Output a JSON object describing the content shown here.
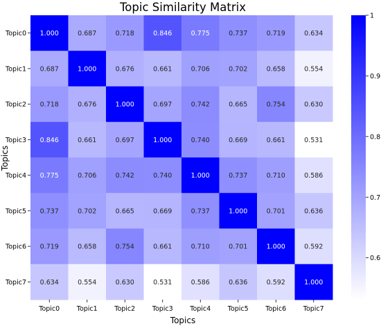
{
  "chart_data": {
    "type": "heatmap",
    "title": "Topic Similarity Matrix",
    "xlabel": "Topics",
    "ylabel": "Topics",
    "x_categories": [
      "Topic0",
      "Topic1",
      "Topic2",
      "Topic3",
      "Topic4",
      "Topic5",
      "Topic6",
      "Topic7"
    ],
    "y_categories": [
      "Topic0",
      "Topic1",
      "Topic2",
      "Topic3",
      "Topic4",
      "Topic5",
      "Topic6",
      "Topic7"
    ],
    "values": [
      [
        1.0,
        0.687,
        0.718,
        0.846,
        0.775,
        0.737,
        0.719,
        0.634
      ],
      [
        0.687,
        1.0,
        0.676,
        0.661,
        0.706,
        0.702,
        0.658,
        0.554
      ],
      [
        0.718,
        0.676,
        1.0,
        0.697,
        0.742,
        0.665,
        0.754,
        0.63
      ],
      [
        0.846,
        0.661,
        0.697,
        1.0,
        0.74,
        0.669,
        0.661,
        0.531
      ],
      [
        0.775,
        0.706,
        0.742,
        0.74,
        1.0,
        0.737,
        0.71,
        0.586
      ],
      [
        0.737,
        0.702,
        0.665,
        0.669,
        0.737,
        1.0,
        0.701,
        0.636
      ],
      [
        0.719,
        0.658,
        0.754,
        0.661,
        0.71,
        0.701,
        1.0,
        0.592
      ],
      [
        0.634,
        0.554,
        0.63,
        0.531,
        0.586,
        0.636,
        0.592,
        1.0
      ]
    ],
    "value_format": "0.000",
    "colorscale": {
      "low": "#ffffff",
      "high": "#0000ff"
    },
    "value_range": [
      0.531,
      1.0
    ],
    "colorbar": {
      "ticks": [
        0.6,
        0.7,
        0.8,
        0.9,
        1.0
      ],
      "tick_labels": [
        "0.6",
        "0.7",
        "0.8",
        "0.9",
        "1"
      ]
    },
    "grid": false,
    "annotations_on_cells": true
  }
}
